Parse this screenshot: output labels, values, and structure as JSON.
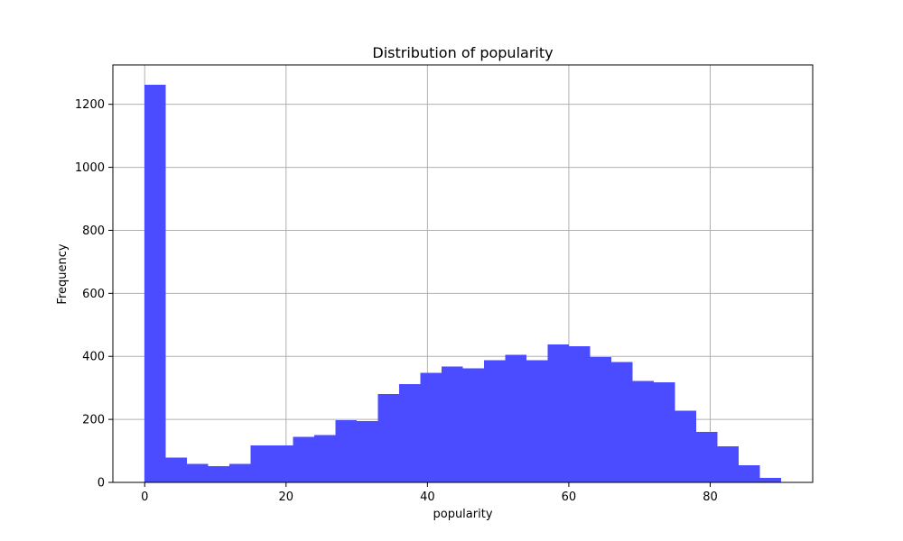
{
  "chart_data": {
    "type": "bar",
    "title": "Distribution of popularity",
    "xlabel": "popularity",
    "ylabel": "Frequency",
    "grid": true,
    "bar_color": "#4b4bff",
    "bin_edges": [
      0,
      3,
      6,
      9,
      12,
      15,
      18,
      21,
      24,
      27,
      30,
      33,
      36,
      39,
      42,
      45,
      48,
      51,
      54,
      57,
      60,
      63,
      66,
      69,
      72,
      75,
      78,
      81,
      84,
      87,
      90
    ],
    "values": [
      1262,
      78,
      58,
      52,
      58,
      118,
      118,
      145,
      150,
      198,
      195,
      280,
      312,
      348,
      368,
      362,
      388,
      405,
      388,
      438,
      432,
      398,
      382,
      322,
      318,
      228,
      160,
      115,
      55,
      15
    ],
    "xlim": [
      -4.5,
      94.5
    ],
    "ylim": [
      0,
      1325
    ],
    "x_ticks": [
      0,
      20,
      40,
      60,
      80
    ],
    "x_tick_labels": [
      "0",
      "20",
      "40",
      "60",
      "80"
    ],
    "y_ticks": [
      0,
      200,
      400,
      600,
      800,
      1000,
      1200
    ],
    "y_tick_labels": [
      "0",
      "200",
      "400",
      "600",
      "800",
      "1000",
      "1200"
    ]
  }
}
